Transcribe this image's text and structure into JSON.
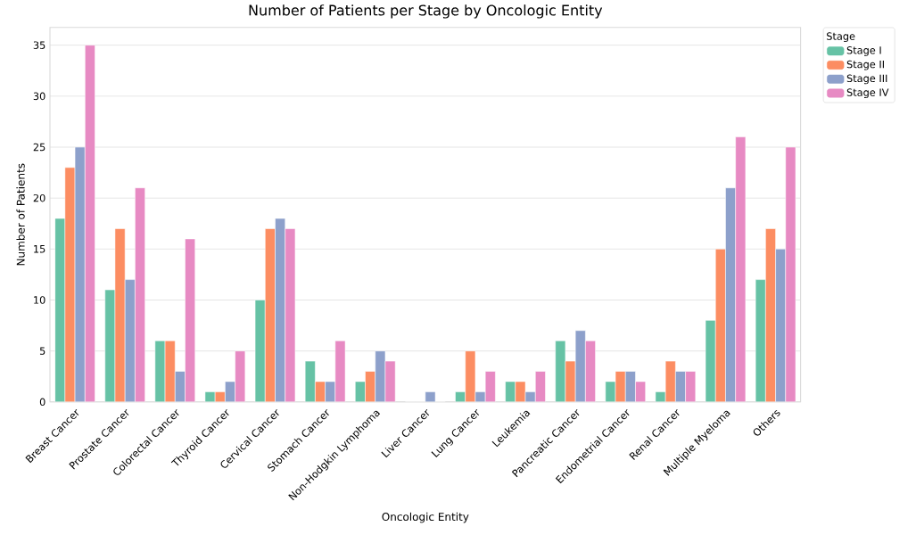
{
  "chart_data": {
    "type": "bar",
    "title": "Number of Patients per Stage by Oncologic Entity",
    "xlabel": "Oncologic Entity",
    "ylabel": "Number of Patients",
    "legend_title": "Stage",
    "categories": [
      "Breast Cancer",
      "Prostate Cancer",
      "Colorectal Cancer",
      "Thyroid Cancer",
      "Cervical Cancer",
      "Stomach Cancer",
      "Non-Hodgkin Lymphoma",
      "Liver Cancer",
      "Lung Cancer",
      "Leukemia",
      "Pancreatic Cancer",
      "Endometrial Cancer",
      "Renal Cancer",
      "Multiple Myeloma",
      "Others"
    ],
    "series": [
      {
        "name": "Stage I",
        "color": "#66c2a5",
        "values": [
          18,
          11,
          6,
          1,
          10,
          4,
          2,
          0,
          1,
          2,
          6,
          2,
          1,
          8,
          12
        ]
      },
      {
        "name": "Stage II",
        "color": "#fc8d62",
        "values": [
          23,
          17,
          6,
          1,
          17,
          2,
          3,
          0,
          5,
          2,
          4,
          3,
          4,
          15,
          17
        ]
      },
      {
        "name": "Stage III",
        "color": "#8da0cb",
        "values": [
          25,
          12,
          3,
          2,
          18,
          2,
          5,
          1,
          1,
          1,
          7,
          3,
          3,
          21,
          15
        ]
      },
      {
        "name": "Stage IV",
        "color": "#e78ac3",
        "values": [
          35,
          21,
          16,
          5,
          17,
          6,
          4,
          0,
          3,
          3,
          6,
          2,
          3,
          26,
          25
        ]
      }
    ],
    "ylim": [
      0,
      36.75
    ],
    "yticks": [
      0,
      5,
      10,
      15,
      20,
      25,
      30,
      35
    ],
    "grid": "y",
    "legend": "top right"
  }
}
